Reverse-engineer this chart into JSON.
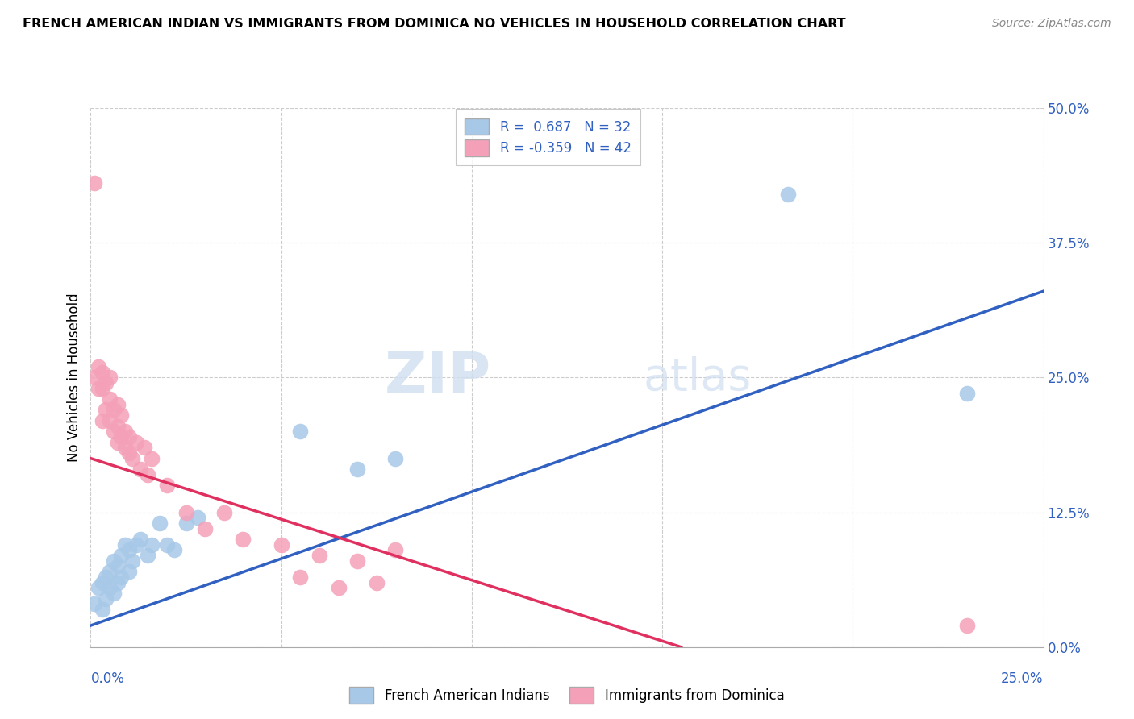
{
  "title": "FRENCH AMERICAN INDIAN VS IMMIGRANTS FROM DOMINICA NO VEHICLES IN HOUSEHOLD CORRELATION CHART",
  "source": "Source: ZipAtlas.com",
  "ylabel": "No Vehicles in Household",
  "yticks": [
    "0.0%",
    "12.5%",
    "25.0%",
    "37.5%",
    "50.0%"
  ],
  "ytick_vals": [
    0.0,
    0.125,
    0.25,
    0.375,
    0.5
  ],
  "xlim": [
    0.0,
    0.25
  ],
  "ylim": [
    0.0,
    0.5
  ],
  "legend1_r": "0.687",
  "legend1_n": "32",
  "legend2_r": "-0.359",
  "legend2_n": "42",
  "blue_color": "#a8c8e8",
  "pink_color": "#f4a0b8",
  "blue_line_color": "#3060c0",
  "pink_line_color": "#e03060",
  "watermark_zip": "ZIP",
  "watermark_atlas": "atlas",
  "blue_scatter_x": [
    0.001,
    0.002,
    0.003,
    0.003,
    0.004,
    0.004,
    0.005,
    0.005,
    0.006,
    0.006,
    0.007,
    0.007,
    0.008,
    0.008,
    0.009,
    0.01,
    0.01,
    0.011,
    0.012,
    0.013,
    0.015,
    0.016,
    0.018,
    0.02,
    0.022,
    0.025,
    0.028,
    0.055,
    0.07,
    0.08,
    0.183,
    0.23
  ],
  "blue_scatter_y": [
    0.04,
    0.055,
    0.035,
    0.06,
    0.045,
    0.065,
    0.055,
    0.07,
    0.05,
    0.08,
    0.06,
    0.075,
    0.065,
    0.085,
    0.095,
    0.07,
    0.09,
    0.08,
    0.095,
    0.1,
    0.085,
    0.095,
    0.115,
    0.095,
    0.09,
    0.115,
    0.12,
    0.2,
    0.165,
    0.175,
    0.42,
    0.235
  ],
  "pink_scatter_x": [
    0.001,
    0.001,
    0.002,
    0.002,
    0.003,
    0.003,
    0.003,
    0.004,
    0.004,
    0.005,
    0.005,
    0.005,
    0.006,
    0.006,
    0.007,
    0.007,
    0.007,
    0.008,
    0.008,
    0.009,
    0.009,
    0.01,
    0.01,
    0.011,
    0.012,
    0.013,
    0.014,
    0.015,
    0.016,
    0.02,
    0.025,
    0.03,
    0.035,
    0.04,
    0.05,
    0.055,
    0.06,
    0.065,
    0.07,
    0.075,
    0.08,
    0.23
  ],
  "pink_scatter_y": [
    0.43,
    0.25,
    0.24,
    0.26,
    0.21,
    0.24,
    0.255,
    0.22,
    0.245,
    0.21,
    0.23,
    0.25,
    0.2,
    0.22,
    0.19,
    0.205,
    0.225,
    0.195,
    0.215,
    0.185,
    0.2,
    0.18,
    0.195,
    0.175,
    0.19,
    0.165,
    0.185,
    0.16,
    0.175,
    0.15,
    0.125,
    0.11,
    0.125,
    0.1,
    0.095,
    0.065,
    0.085,
    0.055,
    0.08,
    0.06,
    0.09,
    0.02
  ],
  "blue_line_x": [
    0.0,
    0.25
  ],
  "blue_line_y": [
    0.02,
    0.33
  ],
  "pink_line_x": [
    0.0,
    0.155
  ],
  "pink_line_y": [
    0.175,
    0.0
  ]
}
